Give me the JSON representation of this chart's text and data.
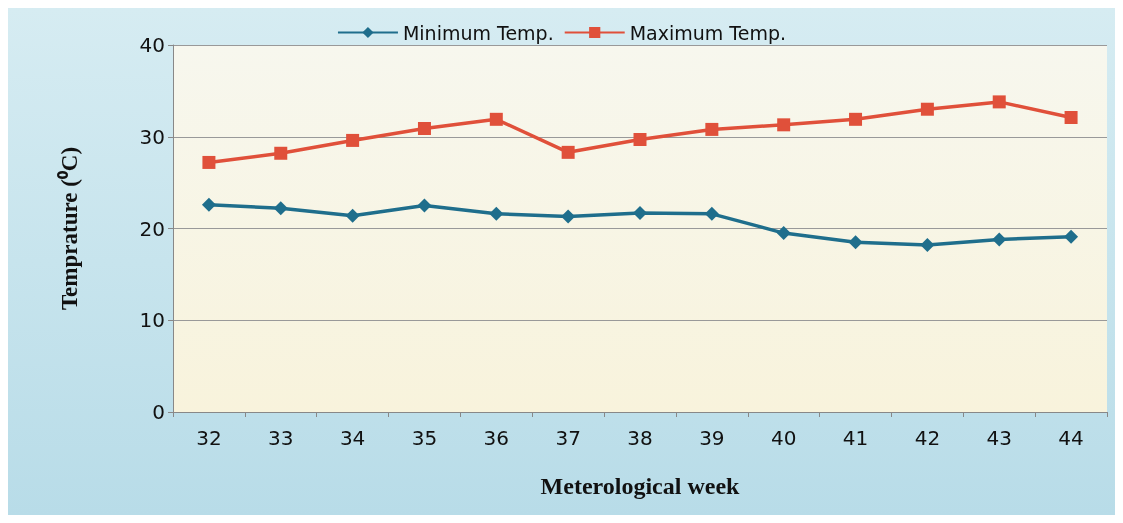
{
  "chart_data": {
    "type": "line",
    "xlabel": "Meterological week",
    "ylabel": "Temprature (⁰C)",
    "categories": [
      "32",
      "33",
      "34",
      "35",
      "36",
      "37",
      "38",
      "39",
      "40",
      "41",
      "42",
      "43",
      "44"
    ],
    "series": [
      {
        "name": "Minimum Temp.",
        "color": "#1f6e8c",
        "marker": "diamond",
        "values": [
          22.6,
          22.2,
          21.4,
          22.5,
          21.6,
          21.3,
          21.7,
          21.6,
          19.5,
          18.5,
          18.2,
          18.8,
          19.1
        ]
      },
      {
        "name": "Maximum Temp.",
        "color": "#e0503a",
        "marker": "square",
        "values": [
          27.2,
          28.2,
          29.6,
          30.9,
          31.9,
          28.3,
          29.7,
          30.8,
          31.3,
          31.9,
          33.0,
          33.8,
          32.1
        ]
      }
    ],
    "ylim": [
      0,
      40
    ],
    "yticks": [
      0,
      10,
      20,
      30,
      40
    ],
    "grid": "y",
    "legend": "top",
    "line_style": "solid"
  }
}
